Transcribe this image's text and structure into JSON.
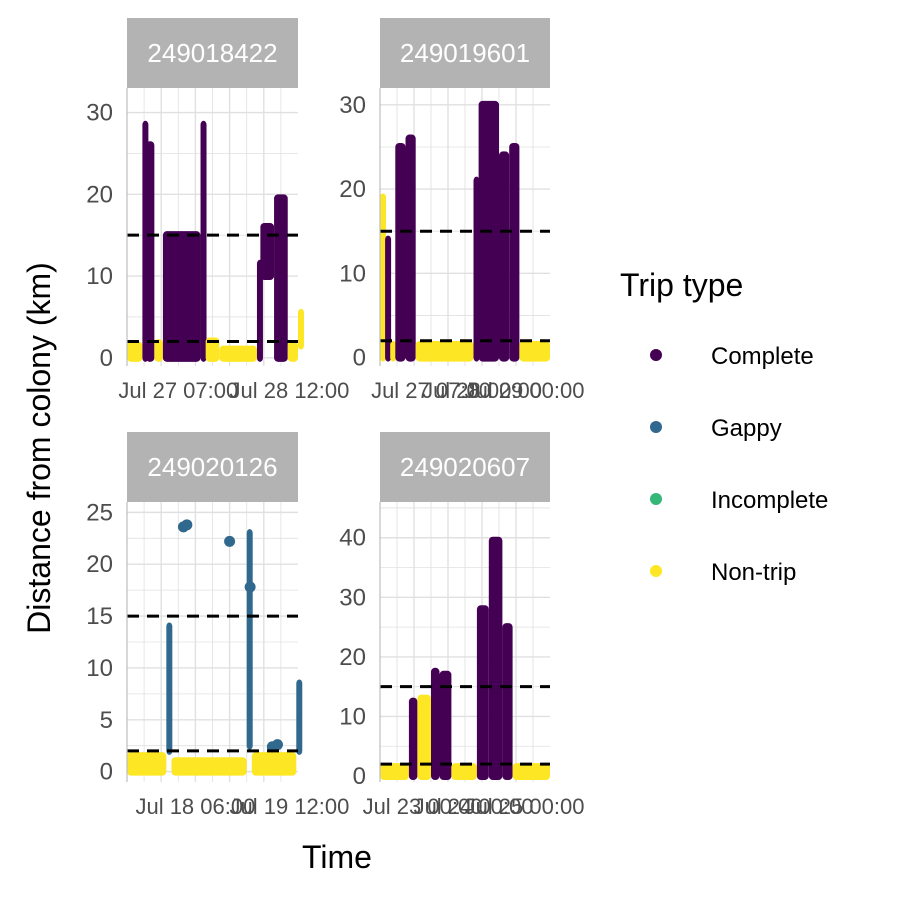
{
  "chart_data": {
    "type": "scatter",
    "xlabel": "Time",
    "ylabel": "Distance from colony (km)",
    "legend": {
      "title": "Trip type",
      "placement": "right",
      "entries": [
        {
          "name": "Complete",
          "color": "#440154"
        },
        {
          "name": "Gappy",
          "color": "#31688E"
        },
        {
          "name": "Incomplete",
          "color": "#35B779"
        },
        {
          "name": "Non-trip",
          "color": "#FDE725"
        }
      ]
    },
    "reference_lines_km": [
      2,
      15
    ],
    "panels": [
      {
        "id": "249018422",
        "ylim": [
          -1,
          33
        ],
        "yticks": [
          0,
          10,
          20,
          30
        ],
        "x_tick_labels": [
          "Jul 27 07:00",
          "Jul 28 12:00"
        ],
        "segments": [
          {
            "type": "Non-trip",
            "x0": 0.0,
            "x1": 0.09,
            "ymin": 0,
            "ymax": 1.5
          },
          {
            "type": "Complete",
            "x0": 0.09,
            "x1": 0.11,
            "ymin": 0,
            "ymax": 28.5
          },
          {
            "type": "Complete",
            "x0": 0.11,
            "x1": 0.16,
            "ymin": 0,
            "ymax": 26
          },
          {
            "type": "Non-trip",
            "x0": 0.16,
            "x1": 0.21,
            "ymin": 0,
            "ymax": 1.8
          },
          {
            "type": "Complete",
            "x0": 0.21,
            "x1": 0.43,
            "ymin": 0,
            "ymax": 15
          },
          {
            "type": "Complete",
            "x0": 0.43,
            "x1": 0.46,
            "ymin": 0,
            "ymax": 28.5
          },
          {
            "type": "Non-trip",
            "x0": 0.46,
            "x1": 0.54,
            "ymin": 0,
            "ymax": 2
          },
          {
            "type": "Non-trip",
            "x0": 0.54,
            "x1": 0.76,
            "ymin": 0,
            "ymax": 1
          },
          {
            "type": "Complete",
            "x0": 0.76,
            "x1": 0.78,
            "ymin": 0,
            "ymax": 11.5
          },
          {
            "type": "Complete",
            "x0": 0.78,
            "x1": 0.86,
            "ymin": 10,
            "ymax": 16
          },
          {
            "type": "Complete",
            "x0": 0.86,
            "x1": 0.94,
            "ymin": 0,
            "ymax": 19.5
          },
          {
            "type": "Non-trip",
            "x0": 0.94,
            "x1": 1.48,
            "ymin": 0,
            "ymax": 1.5
          },
          {
            "type": "Non-trip",
            "x0": 1.48,
            "x1": 1.5,
            "ymin": 1.5,
            "ymax": 5.5
          }
        ]
      },
      {
        "id": "249019601",
        "ylim": [
          -1,
          32
        ],
        "yticks": [
          0,
          10,
          20,
          30
        ],
        "x_tick_labels": [
          "Jul 27 07:00",
          "Jul 28 00:00",
          "Jul 29 00:00"
        ],
        "segments": [
          {
            "type": "Non-trip",
            "x0": 0.0,
            "x1": 0.03,
            "ymin": 0,
            "ymax": 19
          },
          {
            "type": "Complete",
            "x0": 0.03,
            "x1": 0.06,
            "ymin": 0,
            "ymax": 14
          },
          {
            "type": "Non-trip",
            "x0": 0.06,
            "x1": 0.09,
            "ymin": 0,
            "ymax": 1.5
          },
          {
            "type": "Complete",
            "x0": 0.09,
            "x1": 0.15,
            "ymin": 0,
            "ymax": 25
          },
          {
            "type": "Complete",
            "x0": 0.15,
            "x1": 0.21,
            "ymin": 0,
            "ymax": 26
          },
          {
            "type": "Non-trip",
            "x0": 0.21,
            "x1": 0.55,
            "ymin": 0,
            "ymax": 1.5
          },
          {
            "type": "Complete",
            "x0": 0.55,
            "x1": 0.58,
            "ymin": 0,
            "ymax": 21
          },
          {
            "type": "Complete",
            "x0": 0.58,
            "x1": 0.7,
            "ymin": 0,
            "ymax": 30
          },
          {
            "type": "Complete",
            "x0": 0.7,
            "x1": 0.76,
            "ymin": 0,
            "ymax": 24
          },
          {
            "type": "Complete",
            "x0": 0.76,
            "x1": 0.82,
            "ymin": 0,
            "ymax": 25
          },
          {
            "type": "Non-trip",
            "x0": 0.82,
            "x1": 1.0,
            "ymin": 0,
            "ymax": 1.5
          }
        ]
      },
      {
        "id": "249020126",
        "ylim": [
          -1,
          26
        ],
        "yticks": [
          0,
          5,
          10,
          15,
          20,
          25
        ],
        "x_tick_labels": [
          "Jul 18 06:00",
          "Jul 19 12:00"
        ],
        "segments": [
          {
            "type": "Non-trip",
            "x0": 0.0,
            "x1": 0.23,
            "ymin": 0,
            "ymax": 1.5
          },
          {
            "type": "Gappy",
            "x0": 0.23,
            "x1": 0.26,
            "ymin": 2,
            "ymax": 14
          },
          {
            "type": "Non-trip",
            "x0": 0.26,
            "x1": 0.7,
            "ymin": 0,
            "ymax": 1
          },
          {
            "type": "Gappy",
            "x0": 0.7,
            "x1": 0.73,
            "ymin": 2.5,
            "ymax": 23
          },
          {
            "type": "Non-trip",
            "x0": 0.73,
            "x1": 0.99,
            "ymin": 0,
            "ymax": 1.5
          },
          {
            "type": "Gappy",
            "x0": 0.99,
            "x1": 1.0,
            "ymin": 2,
            "ymax": 8.5
          }
        ],
        "points": [
          {
            "type": "Gappy",
            "x": 0.33,
            "y": 23.6
          },
          {
            "type": "Gappy",
            "x": 0.35,
            "y": 23.8
          },
          {
            "type": "Gappy",
            "x": 0.6,
            "y": 22.2
          },
          {
            "type": "Gappy",
            "x": 0.72,
            "y": 17.8
          },
          {
            "type": "Gappy",
            "x": 0.85,
            "y": 2.4
          },
          {
            "type": "Gappy",
            "x": 0.88,
            "y": 2.6
          }
        ]
      },
      {
        "id": "249020607",
        "ylim": [
          -1,
          46
        ],
        "yticks": [
          0,
          10,
          20,
          30,
          40
        ],
        "x_tick_labels": [
          "Jul 23 00:00",
          "Jul 24 00:00",
          "Jul 25 00:00"
        ],
        "segments": [
          {
            "type": "Non-trip",
            "x0": 0.0,
            "x1": 0.17,
            "ymin": 0,
            "ymax": 1.5
          },
          {
            "type": "Complete",
            "x0": 0.17,
            "x1": 0.22,
            "ymin": 0,
            "ymax": 12.5
          },
          {
            "type": "Non-trip",
            "x0": 0.22,
            "x1": 0.3,
            "ymin": 0,
            "ymax": 13
          },
          {
            "type": "Complete",
            "x0": 0.3,
            "x1": 0.35,
            "ymin": 0,
            "ymax": 17.5
          },
          {
            "type": "Complete",
            "x0": 0.35,
            "x1": 0.42,
            "ymin": 0,
            "ymax": 17
          },
          {
            "type": "Non-trip",
            "x0": 0.42,
            "x1": 0.57,
            "ymin": 0,
            "ymax": 1.5
          },
          {
            "type": "Complete",
            "x0": 0.57,
            "x1": 0.64,
            "ymin": 0,
            "ymax": 28
          },
          {
            "type": "Complete",
            "x0": 0.64,
            "x1": 0.72,
            "ymin": 0,
            "ymax": 39.5
          },
          {
            "type": "Complete",
            "x0": 0.72,
            "x1": 0.78,
            "ymin": 0,
            "ymax": 25
          },
          {
            "type": "Non-trip",
            "x0": 0.78,
            "x1": 1.0,
            "ymin": 0,
            "ymax": 1.5
          }
        ]
      }
    ]
  },
  "colors": {
    "strip_background": "#b3b3b3",
    "grid": "#e0e0e0",
    "reference_line": "#000000"
  }
}
